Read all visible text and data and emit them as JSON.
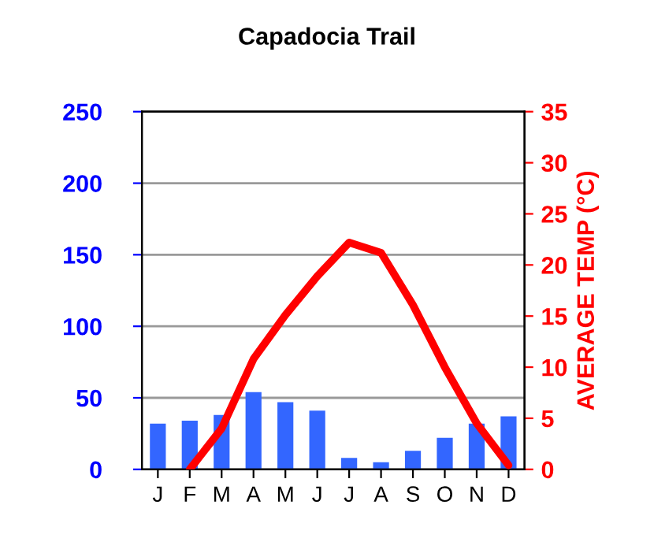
{
  "chart_data": {
    "type": "bar",
    "title": "Capadocia Trail",
    "y2label": "AVERAGE TEMP (°C)",
    "categories": [
      "J",
      "F",
      "M",
      "A",
      "M",
      "J",
      "J",
      "A",
      "S",
      "O",
      "N",
      "D"
    ],
    "series": [
      {
        "color": "#3366ff",
        "values": [
          32,
          34,
          38,
          54,
          47,
          41,
          8,
          5,
          13,
          22,
          32,
          37
        ]
      },
      {
        "type": "line",
        "axis": "y2",
        "color": "#ff0000",
        "values": [
          null,
          0,
          4,
          10.8,
          15.1,
          18.9,
          22.2,
          21.2,
          16.1,
          10,
          4.5,
          0.4
        ]
      }
    ],
    "ylim": [
      0,
      250
    ],
    "yticks": [
      0,
      50,
      100,
      150,
      200,
      250
    ],
    "y2lim": [
      0,
      35
    ],
    "y2ticks": [
      0,
      5,
      10,
      15,
      20,
      25,
      30,
      35
    ],
    "grid": "y",
    "legend": false
  }
}
